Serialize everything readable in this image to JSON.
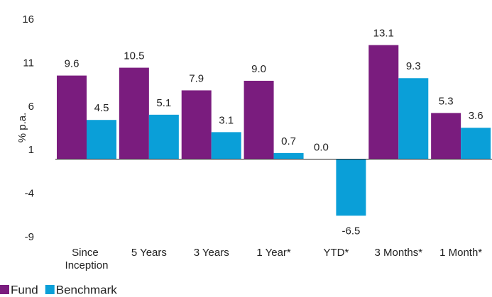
{
  "chart_data": {
    "type": "bar",
    "y_label": "% p.a.",
    "categories": [
      "Since Inception",
      "5 Years",
      "3 Years",
      "1 Year*",
      "YTD*",
      "3 Months*",
      "1 Month*"
    ],
    "series": [
      {
        "name": "Fund",
        "color": "#7a1c7e",
        "values": [
          9.6,
          10.5,
          7.9,
          9.0,
          0.0,
          13.1,
          5.3
        ],
        "value_labels": [
          "9.6",
          "10.5",
          "7.9",
          "9.0",
          "0.0",
          "13.1",
          "5.3"
        ]
      },
      {
        "name": "Benchmark",
        "color": "#0a9fd8",
        "values": [
          4.5,
          5.1,
          3.1,
          0.7,
          -6.5,
          9.3,
          3.6
        ],
        "value_labels": [
          "4.5",
          "5.1",
          "3.1",
          "0.7",
          "-6.5",
          "9.3",
          "3.6"
        ]
      }
    ],
    "ylim": [
      -9,
      16
    ],
    "yticks": [
      -9,
      -4,
      1,
      6,
      11,
      16
    ],
    "grid": false,
    "legend": "bottom-left"
  }
}
